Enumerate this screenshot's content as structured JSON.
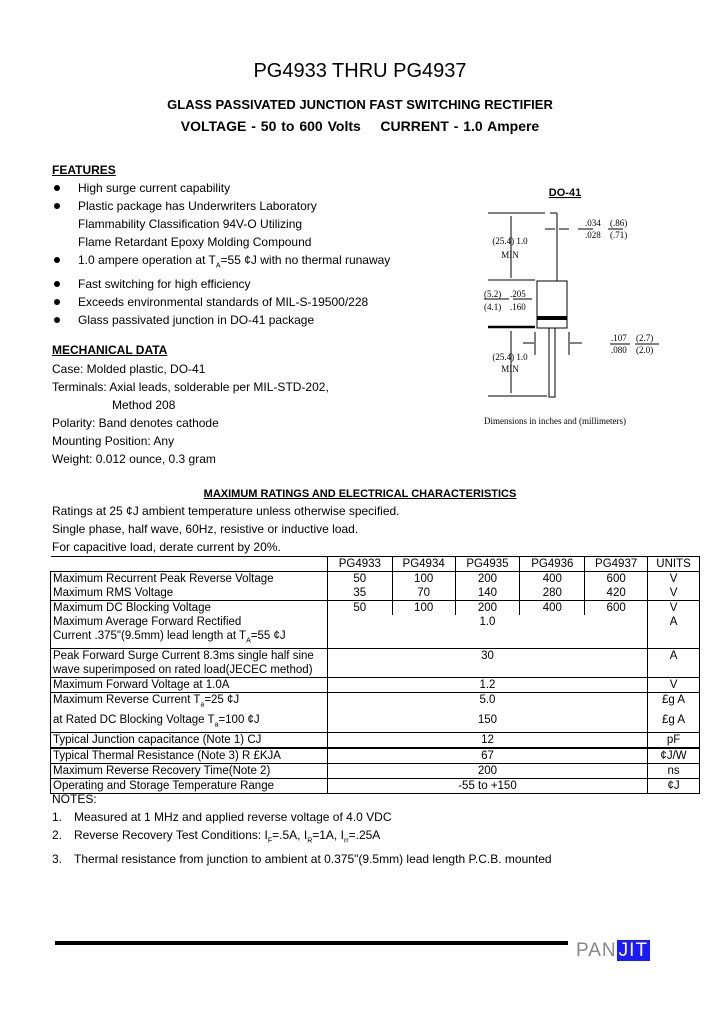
{
  "header": {
    "title": "PG4933 THRU PG4937",
    "subtitle": "GLASS PASSIVATED JUNCTION FAST SWITCHING RECTIFIER",
    "voltage": "VOLTAGE - 50 to 600 Volts",
    "current": "CURRENT - 1.0 Ampere"
  },
  "features": {
    "heading": "FEATURES",
    "items": [
      "High surge current capability",
      "Plastic package has Underwriters Laboratory",
      "Flammability Classification 94V-O Utilizing",
      "Flame Retardant Epoxy Molding Compound",
      "1.0 ampere operation at T",
      "A",
      "=55 ¢J  with no thermal runaway",
      "Fast switching for high efficiency",
      "Exceeds environmental standards of MIL-S-19500/228",
      "Glass passivated junction in DO-41 package"
    ]
  },
  "mechanical": {
    "heading": "MECHANICAL DATA",
    "lines": [
      "Case: Molded plastic, DO-41",
      "Terminals: Axial leads, solderable per MIL-STD-202,",
      "Method 208",
      "Polarity: Band denotes cathode",
      "Mounting Position: Any",
      "Weight: 0.012 ounce, 0.3 gram"
    ]
  },
  "diagram": {
    "title": "DO-41",
    "lead_len_top": "(25.4) 1.0",
    "min_top": "MIN",
    "lead_dia_in": ".034",
    "lead_dia_in2": ".028",
    "lead_dia_mm": "(.86)",
    "lead_dia_mm2": "(.71)",
    "body_len_mm": "(5.2)",
    "body_len_mm2": "(4.1)",
    "body_len_in": ".205",
    "body_len_in2": ".160",
    "body_dia_in": ".107",
    "body_dia_in2": ".080",
    "body_dia_mm": "(2.7)",
    "body_dia_mm2": "(2.0)",
    "lead_len_bot": "(25.4) 1.0",
    "min_bot": "MIN",
    "caption": "Dimensions in inches and (millimeters)"
  },
  "ratings": {
    "heading": "MAXIMUM RATINGS AND ELECTRICAL CHARACTERISTICS",
    "lines": [
      "Ratings at 25 ¢J  ambient temperature unless otherwise specified.",
      "Single phase, half wave, 60Hz, resistive or inductive load.",
      "For capacitive load, derate current by 20%."
    ]
  },
  "table": {
    "columns": [
      "PG4933",
      "PG4934",
      "PG4935",
      "PG4936",
      "PG4937",
      "UNITS"
    ],
    "rows": [
      {
        "label": "Maximum Recurrent Peak Reverse Voltage",
        "values": [
          "50",
          "100",
          "200",
          "400",
          "600"
        ],
        "unit": "V"
      },
      {
        "label": "Maximum RMS Voltage",
        "values": [
          "35",
          "70",
          "140",
          "280",
          "420"
        ],
        "unit": "V"
      },
      {
        "label": "Maximum DC Blocking Voltage",
        "values": [
          "50",
          "100",
          "200",
          "400",
          "600"
        ],
        "unit": "V"
      },
      {
        "label": "Maximum Average Forward Rectified",
        "label2": "Current .375\"(9.5mm) lead length at T",
        "sub": "A",
        "label3": "=55 ¢J",
        "value": "1.0",
        "unit": "A"
      },
      {
        "label": "Peak Forward Surge Current 8.3ms single half sine",
        "label2": "wave superimposed on rated load(JECEC method)",
        "value": "30",
        "unit": "A"
      },
      {
        "label": "Maximum Forward Voltage at 1.0A",
        "value": "1.2",
        "unit": "V"
      },
      {
        "label": "Maximum Reverse Current T",
        "sub": "a",
        "label3": "=25 ¢J",
        "value": "5.0",
        "unit": "£g A"
      },
      {
        "label": "at Rated DC Blocking Voltage T",
        "sub": "a",
        "label3": "=100 ¢J",
        "value": "150",
        "unit": "£g A"
      },
      {
        "label": "Typical Junction capacitance (Note 1) CJ",
        "value": "12",
        "unit": "pF"
      },
      {
        "label": "Typical Thermal Resistance (Note 3) R £KJA",
        "value": "67",
        "unit": "¢J/W"
      },
      {
        "label": "Maximum Reverse Recovery Time(Note 2)",
        "value": "200",
        "unit": "ns"
      },
      {
        "label": "Operating and Storage Temperature Range",
        "value": "-55 to +150",
        "unit": "¢J"
      }
    ]
  },
  "notes": {
    "heading": "NOTES:",
    "items": [
      {
        "num": "1.",
        "text": "Measured at 1 MHz and applied reverse voltage of 4.0 VDC"
      },
      {
        "num": "2.",
        "a": "Reverse Recovery Test Conditions: I",
        "s1": "F",
        "b": "=.5A, I",
        "s2": "R",
        "c": "=1A, I",
        "s3": "rr",
        "d": "=.25A"
      },
      {
        "num": "3.",
        "text": "Thermal resistance from junction to ambient at 0.375\"(9.5mm) lead length P.C.B. mounted"
      }
    ]
  },
  "logo": {
    "text1": "PAN",
    "text2": "JIT"
  }
}
